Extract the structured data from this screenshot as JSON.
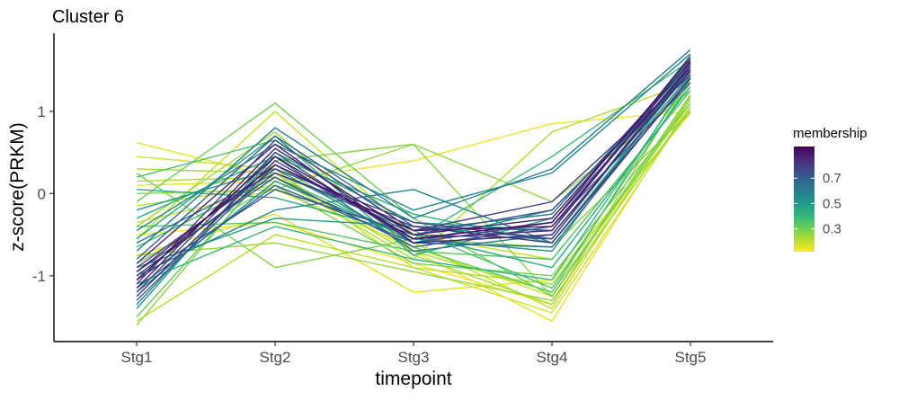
{
  "chart_data": {
    "type": "line",
    "title": "Cluster 6",
    "xlabel": "timepoint",
    "ylabel": "z-score(PRKM)",
    "categories": [
      "Stg1",
      "Stg2",
      "Stg3",
      "Stg4",
      "Stg5"
    ],
    "ylim": [
      -1.8,
      1.95
    ],
    "yticks": [
      1,
      0,
      -1
    ],
    "ytick_labels": [
      "1",
      "0",
      "-1"
    ],
    "grid": false,
    "legend": {
      "title": "membership",
      "position": "right",
      "range": [
        0.12,
        0.95
      ],
      "ticks": [
        0.7,
        0.5,
        0.3
      ],
      "tick_labels": [
        "0.7",
        "0.5",
        "0.3"
      ],
      "colors": [
        "#FDE725",
        "#B5DE2B",
        "#6ECE58",
        "#35B779",
        "#1F9E89",
        "#26828E",
        "#31688E",
        "#3E4989",
        "#482878",
        "#440154"
      ]
    },
    "series": [
      {
        "membership": 0.92,
        "values": [
          -1.05,
          0.45,
          -0.55,
          -0.35,
          1.65
        ]
      },
      {
        "membership": 0.9,
        "values": [
          -0.95,
          0.35,
          -0.45,
          -0.4,
          1.55
        ]
      },
      {
        "membership": 0.88,
        "values": [
          -1.15,
          0.55,
          -0.5,
          -0.3,
          1.6
        ]
      },
      {
        "membership": 0.86,
        "values": [
          -0.85,
          0.6,
          -0.6,
          -0.5,
          1.5
        ]
      },
      {
        "membership": 0.84,
        "values": [
          -1.25,
          0.4,
          -0.55,
          -0.45,
          1.62
        ]
      },
      {
        "membership": 0.82,
        "values": [
          -1.0,
          0.25,
          -0.4,
          -0.6,
          1.4
        ]
      },
      {
        "membership": 0.8,
        "values": [
          -1.1,
          0.65,
          -0.45,
          -0.1,
          1.45
        ]
      },
      {
        "membership": 0.78,
        "values": [
          -0.9,
          0.3,
          -0.35,
          -0.55,
          1.58
        ]
      },
      {
        "membership": 0.76,
        "values": [
          -1.2,
          0.5,
          -0.6,
          -0.35,
          1.52
        ]
      },
      {
        "membership": 0.74,
        "values": [
          -1.05,
          0.05,
          -0.5,
          -0.2,
          1.48
        ]
      },
      {
        "membership": 0.72,
        "values": [
          -0.95,
          0.2,
          -0.65,
          -0.4,
          1.35
        ]
      },
      {
        "membership": 0.7,
        "values": [
          -1.3,
          0.35,
          -0.5,
          -0.55,
          1.55
        ]
      },
      {
        "membership": 0.68,
        "values": [
          -0.8,
          0.7,
          -0.4,
          -0.45,
          1.68
        ]
      },
      {
        "membership": 0.66,
        "values": [
          -1.15,
          0.1,
          -0.6,
          -0.65,
          1.42
        ]
      },
      {
        "membership": 0.64,
        "values": [
          -0.6,
          0.25,
          -0.45,
          -0.25,
          1.6
        ]
      },
      {
        "membership": 0.62,
        "values": [
          -1.35,
          0.45,
          -0.7,
          -0.5,
          1.5
        ]
      },
      {
        "membership": 0.6,
        "values": [
          -0.7,
          0.8,
          -0.3,
          0.3,
          1.75
        ]
      },
      {
        "membership": 0.58,
        "values": [
          -1.0,
          -0.2,
          0.05,
          -0.6,
          1.45
        ]
      },
      {
        "membership": 0.56,
        "values": [
          -0.45,
          0.6,
          -0.2,
          0.25,
          1.7
        ]
      },
      {
        "membership": 0.54,
        "values": [
          -1.2,
          0.15,
          -0.55,
          -0.7,
          1.55
        ]
      },
      {
        "membership": 0.52,
        "values": [
          -0.2,
          0.3,
          -0.6,
          -0.2,
          1.45
        ]
      },
      {
        "membership": 0.5,
        "values": [
          -0.9,
          -0.3,
          -0.4,
          -0.55,
          1.6
        ]
      },
      {
        "membership": 0.48,
        "values": [
          -1.4,
          0.5,
          -0.35,
          -0.45,
          1.65
        ]
      },
      {
        "membership": 0.46,
        "values": [
          -0.55,
          0.7,
          -0.75,
          -0.3,
          1.58
        ]
      },
      {
        "membership": 0.44,
        "values": [
          0.05,
          -0.05,
          -0.5,
          -0.9,
          1.3
        ]
      },
      {
        "membership": 0.42,
        "values": [
          -0.3,
          0.45,
          -0.25,
          -0.6,
          1.5
        ]
      },
      {
        "membership": 0.4,
        "values": [
          -1.1,
          -0.4,
          -0.8,
          -1.05,
          1.4
        ]
      },
      {
        "membership": 0.38,
        "values": [
          -0.65,
          0.2,
          -0.55,
          0.45,
          1.62
        ]
      },
      {
        "membership": 0.36,
        "values": [
          0.2,
          0.65,
          -0.45,
          -1.15,
          1.35
        ]
      },
      {
        "membership": 0.34,
        "values": [
          -0.4,
          -0.35,
          -0.7,
          -0.8,
          1.25
        ]
      },
      {
        "membership": 0.32,
        "values": [
          -1.5,
          0.35,
          -0.65,
          -1.2,
          1.45
        ]
      },
      {
        "membership": 0.3,
        "values": [
          -0.1,
          1.1,
          -0.3,
          -1.25,
          1.2
        ]
      },
      {
        "membership": 0.29,
        "values": [
          -0.85,
          0.1,
          -0.85,
          -1.0,
          1.1
        ]
      },
      {
        "membership": 0.28,
        "values": [
          0.25,
          -0.9,
          -0.55,
          -0.65,
          1.0
        ]
      },
      {
        "membership": 0.27,
        "values": [
          -1.6,
          0.4,
          0.6,
          -1.25,
          1.15
        ]
      },
      {
        "membership": 0.26,
        "values": [
          0.0,
          0.05,
          0.6,
          -0.1,
          1.25
        ]
      },
      {
        "membership": 0.25,
        "values": [
          -0.75,
          -0.6,
          -0.95,
          -1.3,
          1.05
        ]
      },
      {
        "membership": 0.24,
        "values": [
          0.3,
          0.25,
          -0.75,
          -1.35,
          1.4
        ]
      },
      {
        "membership": 0.23,
        "values": [
          -0.4,
          0.75,
          -0.7,
          -1.2,
          1.1
        ]
      },
      {
        "membership": 0.22,
        "values": [
          0.15,
          0.2,
          -0.8,
          0.75,
          1.35
        ]
      },
      {
        "membership": 0.21,
        "values": [
          -1.55,
          -0.5,
          -0.9,
          -1.1,
          1.0
        ]
      },
      {
        "membership": 0.2,
        "values": [
          -0.15,
          0.1,
          -0.6,
          -1.4,
          1.18
        ]
      },
      {
        "membership": 0.19,
        "values": [
          -0.55,
          1.0,
          -0.5,
          -0.8,
          1.25
        ]
      },
      {
        "membership": 0.18,
        "values": [
          0.45,
          0.3,
          -0.9,
          -1.45,
          1.05
        ]
      },
      {
        "membership": 0.17,
        "values": [
          -0.35,
          0.05,
          -0.65,
          -1.25,
          1.15
        ]
      },
      {
        "membership": 0.16,
        "values": [
          -0.75,
          -0.25,
          -1.2,
          -1.05,
          0.98
        ]
      },
      {
        "membership": 0.15,
        "values": [
          0.62,
          0.2,
          -0.7,
          -1.55,
          1.1
        ]
      },
      {
        "membership": 0.14,
        "values": [
          0.1,
          0.15,
          0.4,
          0.85,
          1.0
        ]
      },
      {
        "membership": 0.13,
        "values": [
          -0.5,
          -0.35,
          -0.85,
          -1.35,
          1.2
        ]
      }
    ]
  }
}
